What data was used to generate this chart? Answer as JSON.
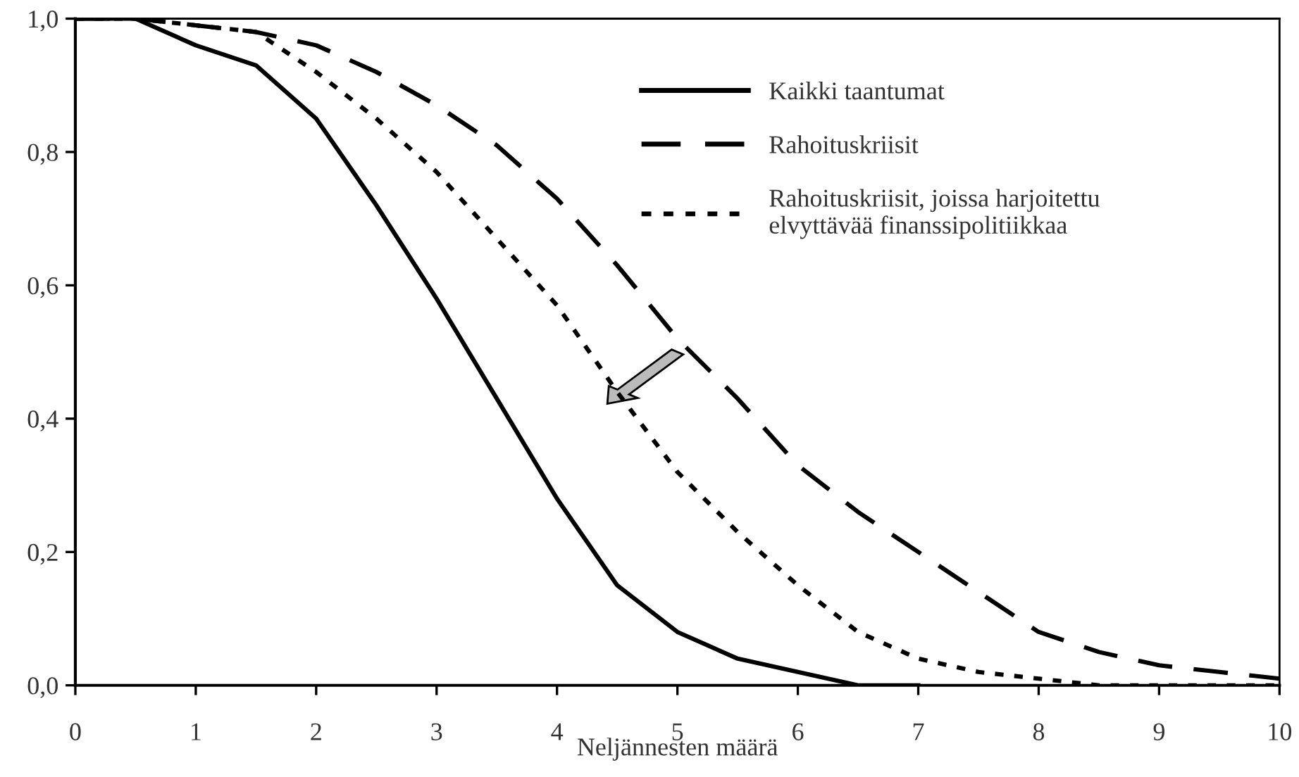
{
  "chart_data": {
    "type": "line",
    "xlabel": "Neljännesten määrä",
    "xlim": [
      0,
      10
    ],
    "ylim": [
      0,
      1
    ],
    "xticks": [
      0,
      1,
      2,
      3,
      4,
      5,
      6,
      7,
      8,
      9,
      10
    ],
    "yticks": [
      {
        "value": 0,
        "label": "0,0"
      },
      {
        "value": 0.2,
        "label": "0,2"
      },
      {
        "value": 0.4,
        "label": "0,4"
      },
      {
        "value": 0.6,
        "label": "0,6"
      },
      {
        "value": 0.8,
        "label": "0,8"
      },
      {
        "value": 1,
        "label": "1,0"
      }
    ],
    "x": [
      0,
      0.5,
      1,
      1.5,
      2,
      2.5,
      3,
      3.5,
      4,
      4.5,
      5,
      5.5,
      6,
      6.5,
      7,
      7.5,
      8,
      8.5,
      9,
      9.5,
      10
    ],
    "grid": false,
    "legend": "top right",
    "marker": "none",
    "series": [
      {
        "name": "Kaikki taantumat",
        "color": "#000000",
        "line_style": "solid",
        "values": [
          1.0,
          1.0,
          0.96,
          0.93,
          0.85,
          0.72,
          0.58,
          0.43,
          0.28,
          0.15,
          0.08,
          0.04,
          0.02,
          0.0,
          0.0,
          null,
          null,
          null,
          null,
          null,
          null
        ]
      },
      {
        "name": "Rahoituskriisit",
        "color": "#000000",
        "line_style": "dashed",
        "values": [
          1.0,
          1.0,
          0.99,
          0.98,
          0.96,
          0.92,
          0.87,
          0.81,
          0.73,
          0.63,
          0.52,
          0.43,
          0.33,
          0.26,
          0.2,
          0.14,
          0.08,
          0.05,
          0.03,
          0.02,
          0.01
        ]
      },
      {
        "name": "Rahoituskriisit, joissa harjoitettu\nelvyttävää finanssipolitiikkaa",
        "color": "#000000",
        "line_style": "dotted",
        "values": [
          1.0,
          1.0,
          0.99,
          0.98,
          0.92,
          0.85,
          0.77,
          0.67,
          0.57,
          0.44,
          0.32,
          0.23,
          0.15,
          0.08,
          0.04,
          0.02,
          0.01,
          0.0,
          0.0,
          0.0,
          0.0
        ]
      }
    ]
  }
}
